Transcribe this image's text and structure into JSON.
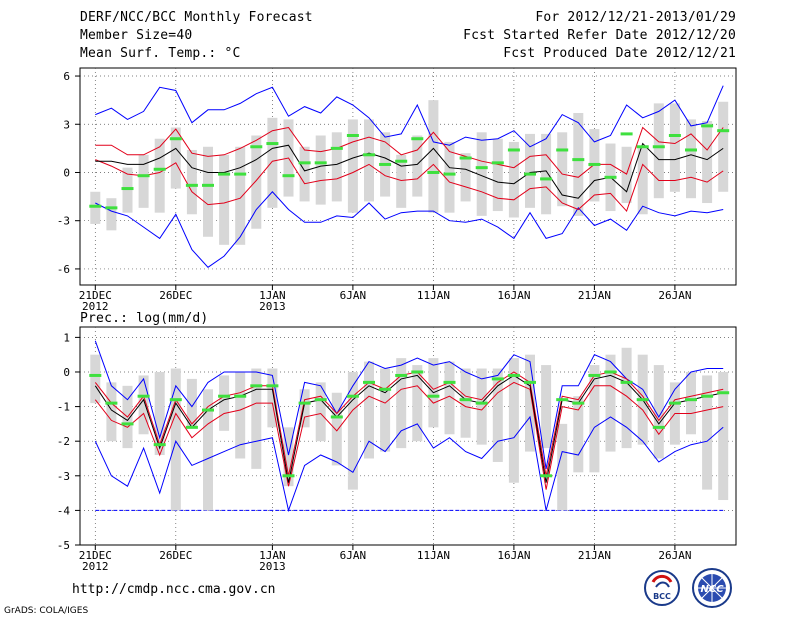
{
  "header": {
    "title": "DERF/NCC/BCC Monthly Forecast",
    "member_size": "Member Size=40",
    "variable": "Mean Surf. Temp.: °C",
    "period": "For 2012/12/21-2013/01/29",
    "start_date": "Fcst Started Refer Date 2012/12/20",
    "produced_date": "Fcst Produced Date 2012/12/21"
  },
  "footer": {
    "url": "http://cmdp.ncc.cma.gov.cn",
    "credit": "GrADS: COLA/IGES",
    "logo1_text": "BCC",
    "logo2_text": "NCC"
  },
  "colors": {
    "box": "#d7d7d7",
    "green": "#3ee03e",
    "red": "#e2001a",
    "blue": "#0000ff",
    "black": "#000000"
  },
  "chart_data": [
    {
      "type": "box-ensemble",
      "title": "Mean Surf. Temp.: °C",
      "ylim": [
        -7,
        6.5
      ],
      "yticks": [
        6,
        3,
        0,
        -3,
        -6
      ],
      "xlabels": [
        {
          "day": 0,
          "line1": "21DEC",
          "line2": "2012"
        },
        {
          "day": 5,
          "line1": "26DEC",
          "line2": ""
        },
        {
          "day": 11,
          "line1": "1JAN",
          "line2": "2013"
        },
        {
          "day": 16,
          "line1": "6JAN",
          "line2": ""
        },
        {
          "day": 21,
          "line1": "11JAN",
          "line2": ""
        },
        {
          "day": 26,
          "line1": "16JAN",
          "line2": ""
        },
        {
          "day": 31,
          "line1": "21JAN",
          "line2": ""
        },
        {
          "day": 36,
          "line1": "26JAN",
          "line2": ""
        }
      ],
      "days": 40,
      "box_low": [
        -3.2,
        -3.6,
        -2.5,
        -2.2,
        -2.5,
        -1,
        -2.6,
        -4,
        -4.5,
        -4.5,
        -3.5,
        -2.2,
        -1.5,
        -1.8,
        -2,
        -1.8,
        -2.5,
        -1.8,
        -1.5,
        -2.2,
        -1.5,
        -2.5,
        -2.5,
        -1.8,
        -2.7,
        -2.4,
        -2.8,
        -2.2,
        -2.6,
        -2.1,
        -2.7,
        -1.8,
        -2.4,
        -1.9,
        -2.6,
        -1.6,
        -1.2,
        -1.6,
        -1.9,
        -1.2
      ],
      "box_high": [
        -1.2,
        -1.6,
        0.3,
        1.1,
        2.1,
        2.8,
        1.4,
        1.6,
        1.1,
        1.6,
        2.3,
        3.4,
        3.3,
        1.6,
        2.3,
        2.5,
        3.3,
        3.3,
        2.5,
        1.1,
        2.3,
        4.5,
        1.9,
        1.2,
        2.5,
        2.1,
        1.9,
        2.4,
        2.4,
        2.5,
        3.7,
        2.7,
        1.8,
        1.6,
        1.5,
        4.3,
        4.3,
        3.3,
        3.2,
        4.4
      ],
      "median": [
        -2.1,
        -2.2,
        -1,
        -0.2,
        0.2,
        2.1,
        -0.8,
        -0.8,
        -0.1,
        -0.1,
        1.6,
        1.8,
        -0.2,
        0.6,
        0.6,
        1.5,
        2.3,
        1.1,
        0.5,
        0.7,
        2.1,
        0,
        -0.1,
        0.9,
        0.3,
        0.6,
        1.4,
        -0.1,
        -0.4,
        1.4,
        0.8,
        0.5,
        -0.3,
        2.4,
        1.6,
        1.6,
        2.3,
        1.4,
        2.9,
        2.6
      ],
      "ens_mean": [
        0.7,
        0.7,
        0.5,
        0.5,
        0.9,
        1.5,
        0.3,
        0,
        0,
        0.3,
        0.8,
        1.5,
        1.7,
        0.1,
        0.4,
        0.5,
        0.9,
        1.2,
        0.9,
        0.4,
        0.5,
        1.5,
        0.3,
        0.2,
        -0.2,
        -0.6,
        -0.7,
        0,
        0.1,
        -1.4,
        -1.6,
        -0.5,
        -0.3,
        -1.2,
        1.8,
        0.8,
        0.8,
        1.1,
        0.8,
        1.5
      ],
      "upper_sd": [
        1.7,
        1.7,
        1.1,
        1.1,
        1.6,
        2.7,
        1.2,
        1,
        1.1,
        1.5,
        2,
        2.6,
        2.8,
        1.4,
        1.3,
        1.5,
        1.9,
        2.2,
        1.9,
        1.1,
        1.4,
        2.5,
        1.3,
        1,
        0.7,
        0.5,
        0.3,
        1,
        1.1,
        -0.1,
        -0.3,
        0.5,
        0.5,
        -0.1,
        2.8,
        1.9,
        1.8,
        2.4,
        1.4,
        2.8
      ],
      "lower_sd": [
        0.8,
        0.4,
        -0.1,
        -0.2,
        0,
        0.6,
        -1.2,
        -2,
        -1.9,
        -1.6,
        -0.5,
        0.7,
        0.9,
        -0.7,
        -0.5,
        -0.4,
        0,
        0.5,
        -0.2,
        -0.5,
        -0.4,
        0.5,
        -0.6,
        -0.9,
        -1.2,
        -1.6,
        -1.7,
        -1,
        -0.9,
        -1.9,
        -2.3,
        -1.4,
        -1.3,
        -2.4,
        0.5,
        -0.5,
        -0.5,
        -0.3,
        -0.6,
        0.1
      ],
      "ens_max": [
        3.6,
        4,
        3.3,
        3.8,
        5.3,
        5.1,
        3.1,
        3.9,
        3.9,
        4.3,
        4.9,
        5.3,
        3.5,
        4.1,
        3.7,
        4.7,
        4.2,
        3.4,
        2.2,
        2.4,
        4.2,
        1.9,
        1.7,
        2.2,
        2,
        2.1,
        2.6,
        1.6,
        2.1,
        3.6,
        3.1,
        1.9,
        2.3,
        4.2,
        3.4,
        3.8,
        4.5,
        2.9,
        3.1,
        5.4
      ],
      "ens_min": [
        -1.9,
        -2.4,
        -2.7,
        -3.4,
        -4.1,
        -2.6,
        -4.8,
        -5.9,
        -5.2,
        -4,
        -2.3,
        -1.2,
        -2.3,
        -3.1,
        -3.1,
        -2.7,
        -2.8,
        -1.9,
        -2.9,
        -2.5,
        -2.4,
        -2.4,
        -3,
        -3.1,
        -2.9,
        -3.4,
        -4.1,
        -2.5,
        -4.1,
        -3.8,
        -2.2,
        -3.3,
        -2.9,
        -3.6,
        -2.1,
        -2.5,
        -2.7,
        -2.4,
        -2.5,
        -2.3
      ]
    },
    {
      "type": "box-ensemble",
      "title": "Prec.: log(mm/d)",
      "ylim": [
        -5,
        1.3
      ],
      "yticks": [
        1,
        0,
        -1,
        -2,
        -3,
        -4,
        -5
      ],
      "xlabels": [
        {
          "day": 0,
          "line1": "21DEC",
          "line2": "2012"
        },
        {
          "day": 5,
          "line1": "26DEC",
          "line2": ""
        },
        {
          "day": 11,
          "line1": "1JAN",
          "line2": "2013"
        },
        {
          "day": 16,
          "line1": "6JAN",
          "line2": ""
        },
        {
          "day": 21,
          "line1": "11JAN",
          "line2": ""
        },
        {
          "day": 26,
          "line1": "16JAN",
          "line2": ""
        },
        {
          "day": 31,
          "line1": "21JAN",
          "line2": ""
        },
        {
          "day": 36,
          "line1": "26JAN",
          "line2": ""
        }
      ],
      "days": 40,
      "box_low": [
        -0.9,
        -2,
        -2.2,
        -1.8,
        -2.4,
        -4,
        -1.6,
        -4,
        -1.7,
        -2.5,
        -2.8,
        -1.6,
        -3.3,
        -1.6,
        -2,
        -2.7,
        -3.4,
        -2.5,
        -2.3,
        -2.2,
        -2,
        -1.6,
        -1.8,
        -1.9,
        -2.1,
        -2.6,
        -3.2,
        -2.3,
        -2.2,
        -4,
        -2.9,
        -2.9,
        -2.3,
        -2.2,
        -2.1,
        -2.5,
        -2.1,
        -1.8,
        -3.4,
        -3.7
      ],
      "box_high": [
        0.5,
        -0.3,
        -0.4,
        -0.1,
        0,
        0.1,
        -0.2,
        -0.5,
        -0.1,
        0,
        0.1,
        0.1,
        -1.6,
        -0.5,
        -0.3,
        -0.6,
        0,
        0.3,
        0.1,
        0.4,
        0.2,
        0.4,
        0.3,
        0.1,
        0.1,
        0.1,
        0.4,
        0.5,
        0.2,
        -1.5,
        -0.7,
        0.2,
        0.5,
        0.7,
        0.5,
        0.2,
        -0.3,
        0,
        -0.1,
        0
      ],
      "median": [
        -0.1,
        -0.9,
        -1.5,
        -0.7,
        -2.1,
        -0.8,
        -1.6,
        -1.1,
        -0.7,
        -0.7,
        -0.4,
        -0.4,
        -3,
        -0.9,
        -0.8,
        -1.3,
        -0.7,
        -0.3,
        -0.5,
        -0.1,
        0,
        -0.7,
        -0.3,
        -0.8,
        -0.9,
        -0.2,
        -0.1,
        -0.3,
        -3,
        -0.8,
        -0.9,
        -0.1,
        0,
        -0.3,
        -0.8,
        -1.6,
        -0.9,
        -0.8,
        -0.7,
        -0.6
      ],
      "ens_mean": [
        -0.4,
        -1.1,
        -1.4,
        -0.8,
        -2.2,
        -0.9,
        -1.6,
        -1.1,
        -0.8,
        -0.7,
        -0.5,
        -0.5,
        -3.2,
        -0.9,
        -0.8,
        -1.3,
        -0.8,
        -0.4,
        -0.6,
        -0.2,
        -0.1,
        -0.6,
        -0.4,
        -0.8,
        -0.9,
        -0.4,
        -0.1,
        -0.4,
        -3.2,
        -0.8,
        -0.9,
        -0.2,
        -0.1,
        -0.3,
        -0.8,
        -1.5,
        -0.9,
        -0.8,
        -0.7,
        -0.6
      ],
      "upper_sd": [
        -0.3,
        -0.9,
        -1.3,
        -0.7,
        -2.1,
        -0.8,
        -1.5,
        -1,
        -0.7,
        -0.6,
        -0.4,
        -0.4,
        -3,
        -0.8,
        -0.7,
        -1.2,
        -0.7,
        -0.3,
        -0.5,
        -0.1,
        0,
        -0.5,
        -0.3,
        -0.7,
        -0.8,
        -0.3,
        0,
        -0.3,
        -3,
        -0.7,
        -0.8,
        -0.1,
        0,
        -0.2,
        -0.7,
        -1.4,
        -0.8,
        -0.7,
        -0.6,
        -0.5
      ],
      "lower_sd": [
        -0.8,
        -1.4,
        -1.6,
        -1.2,
        -2.4,
        -1.2,
        -1.9,
        -1.5,
        -1.2,
        -1.1,
        -0.9,
        -0.9,
        -3.3,
        -1.3,
        -1.2,
        -1.7,
        -1.1,
        -0.7,
        -0.9,
        -0.5,
        -0.4,
        -0.9,
        -0.7,
        -1,
        -1.1,
        -0.6,
        -0.3,
        -0.5,
        -3.4,
        -1,
        -1.1,
        -0.4,
        -0.4,
        -0.7,
        -1.1,
        -1.8,
        -1.2,
        -1.2,
        -1.1,
        -1
      ],
      "ens_max": [
        0.9,
        -0.4,
        -0.8,
        -0.2,
        -1.9,
        -0.4,
        -1,
        -0.3,
        0,
        0,
        0,
        -0.1,
        -2.4,
        -0.3,
        -0.4,
        -1.2,
        -0.4,
        0.3,
        0.1,
        0.2,
        0.4,
        0.2,
        0.3,
        0,
        -0.2,
        -0.1,
        0.5,
        0.3,
        -2.8,
        -0.4,
        -0.4,
        0.5,
        0.3,
        -0.2,
        -0.5,
        -1.3,
        -0.5,
        0,
        0.1,
        0.1
      ],
      "ens_min": [
        -2,
        -3,
        -3.3,
        -2.2,
        -3.5,
        -2,
        -2.7,
        -2.5,
        -2.3,
        -2.1,
        -2,
        -1.9,
        -4,
        -2.7,
        -2.4,
        -2.6,
        -2.9,
        -2,
        -2.3,
        -1.7,
        -1.5,
        -2.2,
        -1.9,
        -2.3,
        -2.5,
        -2,
        -1.9,
        -1.3,
        -4,
        -2.3,
        -2.4,
        -1.6,
        -1.3,
        -1.6,
        -2,
        -2.6,
        -2.3,
        -2.1,
        -2,
        -1.6
      ],
      "floor": -4
    }
  ]
}
